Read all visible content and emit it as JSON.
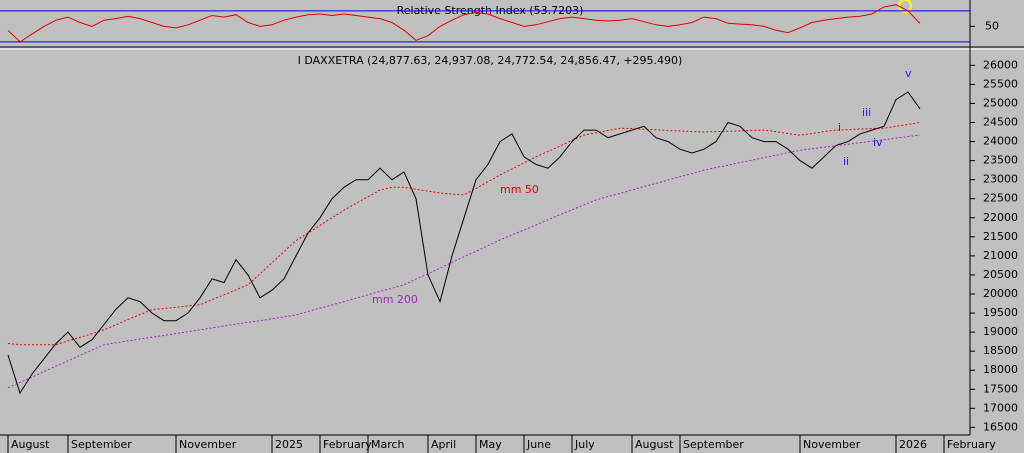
{
  "chart_data": [
    {
      "type": "line",
      "title": "Relative Strength Index (53.7203)",
      "ylim": [
        26,
        84
      ],
      "yticks": [
        50
      ],
      "levels": [
        70,
        30
      ],
      "level_color": "#0000ff",
      "series": [
        {
          "color": "#e00000",
          "values": [
            45,
            30,
            40,
            50,
            58,
            62,
            55,
            50,
            58,
            60,
            63,
            60,
            55,
            50,
            48,
            52,
            58,
            64,
            62,
            65,
            55,
            50,
            52,
            58,
            62,
            65,
            66,
            64,
            66,
            64,
            62,
            60,
            55,
            45,
            32,
            38,
            50,
            58,
            65,
            68,
            66,
            60,
            55,
            50,
            52,
            56,
            60,
            62,
            60,
            58,
            57,
            58,
            60,
            56,
            52,
            50,
            52,
            55,
            62,
            60,
            54,
            53,
            52,
            50,
            45,
            42,
            48,
            55,
            58,
            60,
            62,
            63,
            66,
            75,
            78,
            70,
            53.72,
            null,
            null,
            null,
            null
          ]
        }
      ]
    },
    {
      "type": "line",
      "title": "I DAXXETRA (24,877.63, 24,937.08, 24,772.54, 24,856.47, +295.490)",
      "categories": [
        "August",
        null,
        null,
        null,
        null,
        "September",
        null,
        null,
        null,
        null,
        null,
        null,
        null,
        null,
        "November",
        null,
        null,
        null,
        null,
        null,
        null,
        null,
        "2025",
        null,
        null,
        null,
        "February",
        null,
        null,
        null,
        "March",
        null,
        null,
        null,
        null,
        "April",
        null,
        null,
        null,
        "May",
        null,
        null,
        null,
        "June",
        null,
        null,
        null,
        "July",
        null,
        null,
        null,
        null,
        "August",
        null,
        null,
        null,
        "September",
        null,
        null,
        null,
        null,
        null,
        null,
        null,
        null,
        null,
        "November",
        null,
        null,
        null,
        null,
        null,
        null,
        null,
        "2026",
        null,
        null,
        null,
        "February",
        null,
        null
      ],
      "ylim": [
        16300,
        26350
      ],
      "yticks": [
        16500,
        17000,
        17500,
        18000,
        18500,
        19000,
        19500,
        20000,
        20500,
        21000,
        21500,
        22000,
        22500,
        23000,
        23500,
        24000,
        24500,
        25000,
        25500,
        26000
      ],
      "series": [
        {
          "color": "#000000",
          "values": [
            18400,
            17400,
            17900,
            18300,
            18700,
            19000,
            18600,
            18800,
            19200,
            19600,
            19900,
            19800,
            19500,
            19300,
            19300,
            19500,
            19900,
            20400,
            20300,
            20900,
            20500,
            19900,
            20100,
            20400,
            21000,
            21600,
            22000,
            22500,
            22800,
            23000,
            23000,
            23300,
            23000,
            23200,
            22500,
            20500,
            19800,
            21000,
            22000,
            23000,
            23400,
            24000,
            24200,
            23600,
            23400,
            23300,
            23600,
            24000,
            24300,
            24300,
            24100,
            24200,
            24300,
            24400,
            24100,
            24000,
            23800,
            23700,
            23800,
            24000,
            24500,
            24400,
            24100,
            24000,
            24000,
            23800,
            23500,
            23300,
            23600,
            23900,
            24000,
            24200,
            24300,
            24400,
            25100,
            25300,
            24856.47,
            null,
            null,
            null,
            null
          ]
        },
        {
          "name": "mm 50",
          "color": "#e00000",
          "dashed": true,
          "values": [
            18700,
            18670,
            18670,
            18670,
            18670,
            18770,
            18860,
            18960,
            19060,
            19190,
            19330,
            19460,
            19590,
            19620,
            19650,
            19690,
            19720,
            19850,
            19980,
            20110,
            20240,
            20530,
            20820,
            21110,
            21400,
            21600,
            21800,
            22000,
            22200,
            22380,
            22550,
            22730,
            22800,
            22800,
            22750,
            22700,
            22650,
            22620,
            22600,
            22770,
            22950,
            23120,
            23280,
            23440,
            23600,
            23740,
            23880,
            24030,
            24170,
            24230,
            24290,
            24350,
            24340,
            24320,
            24310,
            24290,
            24280,
            24260,
            24250,
            24260,
            24270,
            24280,
            24290,
            24300,
            24260,
            24210,
            24170,
            24210,
            24260,
            24300,
            24310,
            24330,
            24340,
            24350,
            24400,
            24450,
            24500,
            null,
            null,
            null,
            null
          ]
        },
        {
          "name": "mm 200",
          "color": "#a020c0",
          "dashed": true,
          "values": [
            17540,
            17680,
            17820,
            17960,
            18110,
            18250,
            18390,
            18530,
            18670,
            18720,
            18770,
            18820,
            18870,
            18910,
            18960,
            19010,
            19060,
            19110,
            19160,
            19210,
            19260,
            19300,
            19350,
            19400,
            19450,
            19540,
            19630,
            19710,
            19800,
            19890,
            19980,
            20070,
            20150,
            20240,
            20390,
            20530,
            20680,
            20830,
            20980,
            21120,
            21270,
            21420,
            21550,
            21680,
            21810,
            21950,
            22080,
            22210,
            22340,
            22470,
            22560,
            22640,
            22730,
            22820,
            22900,
            22990,
            23080,
            23160,
            23250,
            23320,
            23380,
            23450,
            23510,
            23580,
            23640,
            23710,
            23770,
            23810,
            23850,
            23890,
            23930,
            23970,
            24010,
            24050,
            24090,
            24130,
            24170,
            null,
            null,
            null,
            null
          ]
        }
      ],
      "annotations": [
        "i",
        "ii",
        "iii",
        "iv",
        "v"
      ]
    }
  ]
}
